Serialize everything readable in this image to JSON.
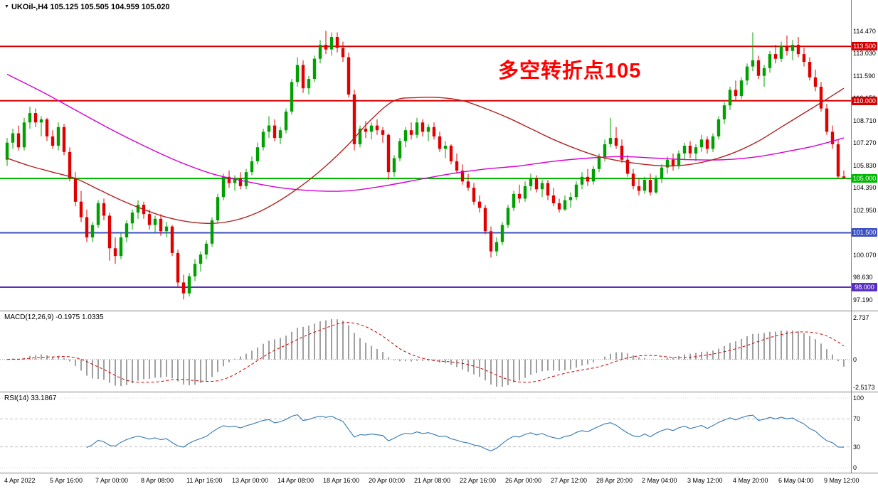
{
  "colors": {
    "up": "#00a000",
    "down": "#e00000",
    "ma_slow": "#d400d4",
    "ma_fast": "#b22222",
    "macd_hist": "#a0a0a0",
    "macd_signal": "#cc0000",
    "rsi_line": "#3378b0",
    "level_dashed": "#c0c0c0",
    "separator": "#808080",
    "annotation": "#ff0000"
  },
  "chart_data": {
    "type": "candlestick",
    "symbol": "UKOil-",
    "timeframe": "H4",
    "title": "UKOil-,H4 105.125 105.505 104.959 105.020",
    "quote": {
      "open": "105.125",
      "high": "105.505",
      "low": "104.959",
      "close": "105.020"
    },
    "annotation": {
      "text": "多空转折点105",
      "color": "#ff0000"
    },
    "price_axis": {
      "labels": [
        "114.470",
        "113.030",
        "111.590",
        "110.150",
        "108.710",
        "107.270",
        "105.830",
        "104.390",
        "102.950",
        "101.510",
        "100.070",
        "98.630",
        "97.190"
      ],
      "min": 96.9,
      "max": 115.2
    },
    "hlines": [
      {
        "value": 113.5,
        "label": "113.500",
        "color": "#d40000",
        "width": 2
      },
      {
        "value": 110.0,
        "label": "110.000",
        "color": "#d40000",
        "width": 2
      },
      {
        "value": 105.0,
        "label": "105.000",
        "color": "#00b800",
        "width": 2
      },
      {
        "value": 101.5,
        "label": "101.500",
        "color": "#3a4fc0",
        "width": 2
      },
      {
        "value": 98.0,
        "label": "98.000",
        "color": "#5a2fc0",
        "width": 2
      }
    ],
    "time_axis": [
      {
        "i": 0,
        "t": "4 Apr 2022"
      },
      {
        "i": 8,
        "t": "5 Apr 16:00"
      },
      {
        "i": 16,
        "t": "7 Apr 00:00"
      },
      {
        "i": 24,
        "t": "8 Apr 08:00"
      },
      {
        "i": 32,
        "t": "11 Apr 16:00"
      },
      {
        "i": 40,
        "t": "13 Apr 00:00"
      },
      {
        "i": 48,
        "t": "14 Apr 08:00"
      },
      {
        "i": 56,
        "t": "18 Apr 16:00"
      },
      {
        "i": 64,
        "t": "20 Apr 00:00"
      },
      {
        "i": 72,
        "t": "21 Apr 08:00"
      },
      {
        "i": 80,
        "t": "22 Apr 16:00"
      },
      {
        "i": 88,
        "t": "26 Apr 00:00"
      },
      {
        "i": 96,
        "t": "27 Apr 12:00"
      },
      {
        "i": 104,
        "t": "28 Apr 20:00"
      },
      {
        "i": 112,
        "t": "2 May 04:00"
      },
      {
        "i": 120,
        "t": "3 May 12:00"
      },
      {
        "i": 128,
        "t": "4 May 20:00"
      },
      {
        "i": 136,
        "t": "6 May 04:00"
      },
      {
        "i": 144,
        "t": "9 May 12:00"
      }
    ],
    "candles": [
      [
        106.2,
        107.6,
        105.8,
        107.3
      ],
      [
        107.3,
        108.2,
        106.9,
        107.9
      ],
      [
        107.9,
        108.4,
        106.8,
        107.0
      ],
      [
        107.0,
        108.9,
        106.8,
        108.6
      ],
      [
        108.6,
        109.6,
        108.2,
        109.2
      ],
      [
        109.2,
        109.5,
        108.3,
        108.6
      ],
      [
        108.6,
        109.0,
        107.7,
        108.8
      ],
      [
        108.8,
        108.9,
        107.4,
        107.7
      ],
      [
        107.7,
        108.1,
        106.9,
        107.1
      ],
      [
        107.1,
        108.6,
        106.8,
        108.3
      ],
      [
        108.3,
        108.5,
        106.5,
        106.7
      ],
      [
        106.7,
        107.0,
        104.8,
        105.0
      ],
      [
        105.0,
        105.4,
        103.2,
        103.5
      ],
      [
        103.5,
        104.2,
        102.2,
        102.5
      ],
      [
        102.5,
        103.0,
        100.9,
        101.2
      ],
      [
        101.2,
        102.2,
        100.9,
        102.0
      ],
      [
        102.0,
        103.6,
        101.8,
        103.4
      ],
      [
        103.4,
        103.7,
        102.3,
        102.6
      ],
      [
        102.6,
        102.8,
        99.7,
        100.5
      ],
      [
        100.5,
        101.2,
        99.5,
        100.0
      ],
      [
        100.0,
        101.5,
        99.8,
        101.2
      ],
      [
        101.2,
        102.3,
        100.9,
        102.1
      ],
      [
        102.1,
        103.0,
        101.7,
        102.8
      ],
      [
        102.8,
        103.6,
        102.4,
        103.3
      ],
      [
        103.3,
        103.5,
        102.4,
        102.7
      ],
      [
        102.7,
        103.0,
        101.7,
        102.0
      ],
      [
        102.0,
        102.6,
        101.5,
        102.4
      ],
      [
        102.4,
        102.7,
        101.3,
        101.6
      ],
      [
        101.6,
        102.2,
        101.2,
        101.9
      ],
      [
        101.9,
        102.0,
        100.0,
        100.2
      ],
      [
        100.2,
        100.4,
        98.0,
        98.3
      ],
      [
        98.3,
        98.8,
        97.2,
        97.6
      ],
      [
        97.6,
        98.9,
        97.4,
        98.7
      ],
      [
        98.7,
        99.8,
        98.4,
        99.5
      ],
      [
        99.5,
        100.3,
        99.0,
        100.1
      ],
      [
        100.1,
        101.0,
        99.8,
        100.8
      ],
      [
        100.8,
        102.5,
        100.6,
        102.3
      ],
      [
        102.3,
        104.0,
        102.1,
        103.8
      ],
      [
        103.8,
        105.3,
        103.6,
        105.1
      ],
      [
        105.1,
        105.5,
        104.4,
        104.7
      ],
      [
        104.7,
        105.2,
        104.2,
        105.0
      ],
      [
        105.0,
        105.4,
        104.3,
        104.5
      ],
      [
        104.5,
        105.6,
        104.3,
        105.4
      ],
      [
        105.4,
        106.4,
        105.2,
        106.1
      ],
      [
        106.1,
        107.3,
        105.9,
        107.0
      ],
      [
        107.0,
        108.2,
        106.8,
        108.0
      ],
      [
        108.0,
        109.0,
        107.6,
        108.4
      ],
      [
        108.4,
        108.8,
        107.4,
        107.6
      ],
      [
        107.6,
        108.3,
        107.2,
        108.1
      ],
      [
        108.1,
        109.5,
        107.9,
        109.3
      ],
      [
        109.3,
        111.4,
        109.1,
        111.2
      ],
      [
        111.2,
        112.8,
        110.9,
        112.3
      ],
      [
        112.3,
        112.6,
        110.5,
        110.8
      ],
      [
        110.8,
        111.6,
        110.4,
        111.4
      ],
      [
        111.4,
        112.9,
        111.2,
        112.7
      ],
      [
        112.7,
        113.9,
        112.4,
        113.6
      ],
      [
        113.6,
        114.5,
        113.0,
        113.3
      ],
      [
        113.3,
        114.4,
        112.9,
        114.1
      ],
      [
        114.1,
        114.4,
        113.1,
        113.4
      ],
      [
        113.4,
        113.8,
        112.5,
        112.8
      ],
      [
        112.8,
        113.1,
        110.2,
        110.4
      ],
      [
        110.4,
        110.7,
        106.8,
        107.2
      ],
      [
        107.2,
        108.4,
        107.0,
        108.2
      ],
      [
        108.2,
        108.7,
        107.6,
        108.0
      ],
      [
        108.0,
        108.6,
        107.5,
        108.4
      ],
      [
        108.4,
        108.8,
        107.8,
        108.1
      ],
      [
        108.1,
        108.3,
        107.3,
        107.8
      ],
      [
        107.8,
        107.9,
        104.9,
        105.4
      ],
      [
        105.4,
        106.5,
        105.1,
        106.3
      ],
      [
        106.3,
        107.6,
        106.1,
        107.4
      ],
      [
        107.4,
        108.3,
        107.0,
        108.1
      ],
      [
        108.1,
        108.6,
        107.5,
        107.8
      ],
      [
        107.8,
        108.9,
        107.6,
        108.6
      ],
      [
        108.6,
        108.8,
        107.7,
        108.0
      ],
      [
        108.0,
        108.5,
        107.4,
        108.3
      ],
      [
        108.3,
        108.6,
        107.5,
        107.7
      ],
      [
        107.7,
        108.0,
        106.7,
        106.9
      ],
      [
        106.9,
        107.4,
        106.3,
        107.1
      ],
      [
        107.1,
        107.2,
        105.9,
        106.1
      ],
      [
        106.1,
        106.6,
        105.3,
        105.5
      ],
      [
        105.5,
        105.9,
        104.6,
        104.8
      ],
      [
        104.8,
        105.3,
        104.2,
        104.4
      ],
      [
        104.4,
        104.7,
        103.3,
        103.5
      ],
      [
        103.5,
        103.9,
        102.8,
        103.1
      ],
      [
        103.1,
        103.3,
        101.4,
        101.6
      ],
      [
        101.6,
        101.9,
        99.9,
        100.3
      ],
      [
        100.3,
        101.2,
        100.0,
        100.9
      ],
      [
        100.9,
        102.2,
        100.7,
        102.0
      ],
      [
        102.0,
        103.3,
        101.8,
        103.1
      ],
      [
        103.1,
        104.2,
        102.9,
        104.0
      ],
      [
        104.0,
        104.6,
        103.4,
        103.7
      ],
      [
        103.7,
        104.8,
        103.5,
        104.5
      ],
      [
        104.5,
        105.3,
        104.2,
        105.0
      ],
      [
        105.0,
        105.2,
        104.1,
        104.3
      ],
      [
        104.3,
        104.9,
        103.8,
        104.7
      ],
      [
        104.7,
        104.9,
        103.6,
        103.9
      ],
      [
        103.9,
        104.4,
        103.2,
        103.4
      ],
      [
        103.4,
        103.7,
        102.8,
        103.0
      ],
      [
        103.0,
        103.9,
        102.9,
        103.6
      ],
      [
        103.6,
        104.1,
        103.1,
        103.8
      ],
      [
        103.8,
        104.8,
        103.6,
        104.6
      ],
      [
        104.6,
        105.4,
        104.3,
        105.1
      ],
      [
        105.1,
        105.6,
        104.5,
        104.8
      ],
      [
        104.8,
        105.8,
        104.6,
        105.6
      ],
      [
        105.6,
        106.6,
        105.4,
        106.4
      ],
      [
        106.4,
        107.5,
        106.1,
        107.2
      ],
      [
        107.2,
        108.9,
        107.0,
        107.6
      ],
      [
        107.6,
        108.3,
        106.9,
        107.1
      ],
      [
        107.1,
        107.5,
        106.0,
        106.2
      ],
      [
        106.2,
        106.5,
        105.1,
        105.3
      ],
      [
        105.3,
        105.6,
        104.3,
        104.5
      ],
      [
        104.5,
        105.0,
        103.9,
        104.2
      ],
      [
        104.2,
        105.1,
        104.0,
        104.9
      ],
      [
        104.9,
        105.3,
        103.9,
        104.1
      ],
      [
        104.1,
        105.2,
        104.0,
        105.0
      ],
      [
        105.0,
        105.9,
        104.7,
        105.7
      ],
      [
        105.7,
        106.4,
        105.3,
        106.2
      ],
      [
        106.2,
        106.6,
        105.5,
        105.8
      ],
      [
        105.8,
        106.8,
        105.6,
        106.6
      ],
      [
        106.6,
        107.3,
        106.2,
        107.1
      ],
      [
        107.1,
        107.4,
        106.3,
        106.6
      ],
      [
        106.6,
        107.2,
        106.1,
        107.0
      ],
      [
        107.0,
        107.8,
        106.7,
        107.5
      ],
      [
        107.5,
        107.7,
        106.6,
        106.9
      ],
      [
        106.9,
        107.9,
        106.7,
        107.7
      ],
      [
        107.7,
        109.0,
        107.5,
        108.8
      ],
      [
        108.8,
        109.9,
        108.5,
        109.7
      ],
      [
        109.7,
        110.9,
        109.4,
        110.7
      ],
      [
        110.7,
        111.3,
        110.0,
        110.3
      ],
      [
        110.3,
        111.5,
        110.1,
        111.3
      ],
      [
        111.3,
        112.4,
        111.0,
        112.2
      ],
      [
        112.2,
        114.4,
        111.9,
        112.6
      ],
      [
        112.6,
        112.9,
        111.4,
        111.6
      ],
      [
        111.6,
        112.3,
        110.9,
        112.1
      ],
      [
        112.1,
        113.2,
        111.8,
        113.0
      ],
      [
        113.0,
        113.6,
        112.4,
        112.7
      ],
      [
        112.7,
        113.8,
        112.5,
        113.5
      ],
      [
        113.5,
        114.2,
        112.9,
        113.2
      ],
      [
        113.2,
        113.9,
        112.6,
        113.6
      ],
      [
        113.6,
        114.1,
        112.8,
        113.0
      ],
      [
        113.0,
        113.4,
        112.2,
        112.5
      ],
      [
        112.5,
        112.8,
        111.3,
        111.5
      ],
      [
        111.5,
        112.0,
        110.6,
        110.9
      ],
      [
        110.9,
        111.2,
        109.3,
        109.5
      ],
      [
        109.5,
        109.8,
        107.8,
        108.0
      ],
      [
        108.0,
        108.4,
        106.9,
        107.2
      ],
      [
        107.2,
        107.5,
        105.0,
        105.125
      ],
      [
        105.125,
        105.505,
        104.959,
        105.02
      ]
    ],
    "ma_lines": [
      {
        "name": "slow-ma",
        "color": "#d400d4",
        "points": [
          [
            0,
            111.7
          ],
          [
            6,
            110.6
          ],
          [
            12,
            109.4
          ],
          [
            18,
            108.2
          ],
          [
            24,
            107.1
          ],
          [
            30,
            106.1
          ],
          [
            36,
            105.3
          ],
          [
            42,
            104.8
          ],
          [
            48,
            104.4
          ],
          [
            54,
            104.2
          ],
          [
            60,
            104.2
          ],
          [
            66,
            104.5
          ],
          [
            72,
            104.9
          ],
          [
            78,
            105.3
          ],
          [
            84,
            105.6
          ],
          [
            90,
            105.8
          ],
          [
            96,
            106.1
          ],
          [
            102,
            106.3
          ],
          [
            108,
            106.4
          ],
          [
            114,
            106.3
          ],
          [
            120,
            106.2
          ],
          [
            126,
            106.2
          ],
          [
            132,
            106.4
          ],
          [
            138,
            106.8
          ],
          [
            142,
            107.1
          ],
          [
            147,
            107.6
          ]
        ]
      },
      {
        "name": "fast-ma",
        "color": "#b22222",
        "points": [
          [
            0,
            106.3
          ],
          [
            4,
            105.8
          ],
          [
            8,
            105.4
          ],
          [
            12,
            105.0
          ],
          [
            16,
            104.3
          ],
          [
            20,
            103.6
          ],
          [
            24,
            103.0
          ],
          [
            28,
            102.5
          ],
          [
            32,
            102.2
          ],
          [
            36,
            102.1
          ],
          [
            40,
            102.3
          ],
          [
            44,
            102.8
          ],
          [
            48,
            103.6
          ],
          [
            52,
            104.6
          ],
          [
            56,
            105.8
          ],
          [
            60,
            107.2
          ],
          [
            64,
            108.8
          ],
          [
            68,
            110.0
          ],
          [
            72,
            110.2
          ],
          [
            76,
            110.2
          ],
          [
            80,
            110.0
          ],
          [
            84,
            109.5
          ],
          [
            88,
            108.9
          ],
          [
            92,
            108.2
          ],
          [
            96,
            107.5
          ],
          [
            100,
            106.9
          ],
          [
            104,
            106.4
          ],
          [
            108,
            106.1
          ],
          [
            112,
            105.9
          ],
          [
            116,
            105.8
          ],
          [
            120,
            105.9
          ],
          [
            124,
            106.2
          ],
          [
            128,
            106.7
          ],
          [
            132,
            107.4
          ],
          [
            136,
            108.3
          ],
          [
            140,
            109.2
          ],
          [
            144,
            110.1
          ],
          [
            147,
            110.8
          ]
        ]
      }
    ],
    "indicators": [
      {
        "name": "MACD",
        "label": "MACD(12,26,9) -0.1975 1.0335",
        "params": {
          "fast": 12,
          "slow": 26,
          "signal": 9
        },
        "values": {
          "macd": "-0.1975",
          "signal": "1.0335"
        },
        "axis_labels": [
          "2.737",
          "0",
          "-2.5173"
        ]
      },
      {
        "name": "RSI",
        "label": "RSI(14) 33.1867",
        "params": {
          "period": 14
        },
        "values": {
          "rsi": "33.1867"
        },
        "axis_labels": [
          "100",
          "70",
          "30",
          "0"
        ],
        "levels": [
          70,
          30
        ]
      }
    ]
  }
}
